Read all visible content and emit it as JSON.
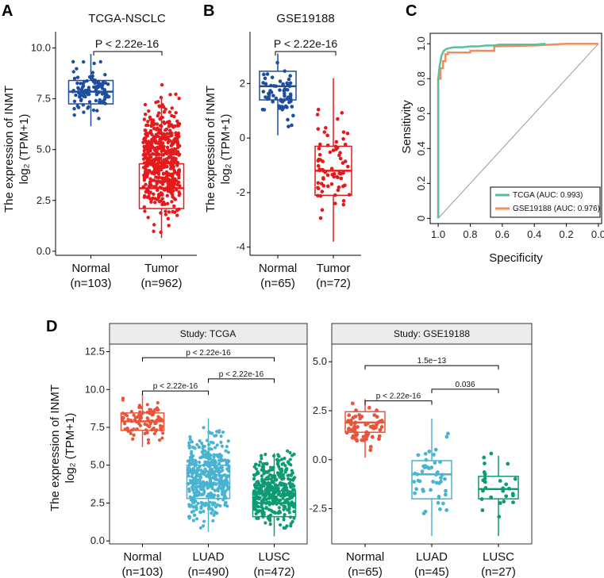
{
  "panel_labels": [
    "A",
    "B",
    "C",
    "D"
  ],
  "colors": {
    "normal_blue": "#1f4e9c",
    "tumor_red": "#e41a1c",
    "tcga_roc": "#5dbf9a",
    "gse_roc": "#f28c5a",
    "d_normal": "#e8553a",
    "d_luad": "#49b3d1",
    "d_lusc": "#0e9a73",
    "strip_bg": "#ececec"
  },
  "chart_data": [
    {
      "panel": "A",
      "type": "box",
      "title": "TCGA-NSCLC",
      "ylabel_line1": "The expression of INMT",
      "ylabel_line2": "log₂ (TPM+1)",
      "ylim": [
        -0.2,
        10.8
      ],
      "yticks": [
        "0.0",
        "2.5",
        "5.0",
        "7.5",
        "10.0"
      ],
      "pvalue": "P < 2.22e-16",
      "groups": [
        {
          "name": "Normal",
          "n_label": "(n=103)",
          "q1": 7.25,
          "median": 7.85,
          "q3": 8.4,
          "whisker_low": 6.15,
          "whisker_high": 9.7,
          "range": [
            6.1,
            9.7
          ]
        },
        {
          "name": "Tumor",
          "n_label": "(n=962)",
          "q1": 2.1,
          "median": 3.1,
          "q3": 4.3,
          "whisker_low": 0.65,
          "whisker_high": 7.6,
          "range": [
            0.6,
            8.4
          ]
        }
      ]
    },
    {
      "panel": "B",
      "type": "box",
      "title": "GSE19188",
      "ylabel_line1": "The expression of INMT",
      "ylabel_line2": "log₂ (TPM+1)",
      "ylim": [
        -4.3,
        3.9
      ],
      "yticks": [
        "-4",
        "-2",
        "0",
        "2"
      ],
      "pvalue": "P < 2.22e-16",
      "groups": [
        {
          "name": "Normal",
          "n_label": "(n=65)",
          "q1": 1.4,
          "median": 1.9,
          "q3": 2.45,
          "whisker_low": 0.1,
          "whisker_high": 3.1,
          "range": [
            0.1,
            3.1
          ]
        },
        {
          "name": "Tumor",
          "n_label": "(n=72)",
          "q1": -2.1,
          "median": -1.2,
          "q3": -0.3,
          "whisker_low": -3.8,
          "whisker_high": 2.2,
          "range": [
            -3.9,
            2.2
          ]
        }
      ]
    },
    {
      "panel": "C",
      "type": "line",
      "xlabel": "Specificity",
      "ylabel": "Sensitivity",
      "xlim": [
        1.05,
        -0.02
      ],
      "ylim": [
        -0.03,
        1.06
      ],
      "xticks": [
        "1.0",
        "0.8",
        "0.6",
        "0.4",
        "0.2",
        "0.0"
      ],
      "yticks": [
        "0",
        "0.2",
        "0.4",
        "0.6",
        "0.8",
        "1.0"
      ],
      "series": [
        {
          "name": "TCGA (AUC: 0.993)",
          "x": [
            1.0,
            1.0,
            0.99,
            0.985,
            0.98,
            0.97,
            0.965,
            0.95,
            0.93,
            0.9,
            0.85,
            0.8,
            0.75,
            0.7,
            0.65,
            0.62,
            0.55,
            0.4,
            0.33
          ],
          "y": [
            0.0,
            0.8,
            0.88,
            0.9,
            0.93,
            0.95,
            0.96,
            0.97,
            0.975,
            0.98,
            0.98,
            0.985,
            0.985,
            0.99,
            0.99,
            0.995,
            0.995,
            0.995,
            1.0
          ]
        },
        {
          "name": "GSE19188 (AUC: 0.976)",
          "x": [
            1.0,
            1.0,
            0.985,
            0.985,
            0.97,
            0.97,
            0.955,
            0.955,
            0.94,
            0.94,
            0.8,
            0.8,
            0.65,
            0.65,
            0.4,
            0.2,
            0.0
          ],
          "y": [
            0.0,
            0.8,
            0.8,
            0.86,
            0.86,
            0.9,
            0.9,
            0.94,
            0.94,
            0.95,
            0.95,
            0.96,
            0.96,
            0.985,
            0.99,
            1.0,
            1.0
          ]
        }
      ]
    },
    {
      "panel": "D-left",
      "type": "box",
      "strip_title": "Study: TCGA",
      "ylabel_line1": "The expression of INMT",
      "ylabel_line2": "log₂ (TPM+1)",
      "ylim": [
        -0.2,
        13.0
      ],
      "yticks": [
        "0.0",
        "2.5",
        "5.0",
        "7.5",
        "10.0",
        "12.5"
      ],
      "comparisons": [
        {
          "label": "p < 2.22e-16",
          "from": 0,
          "to": 2,
          "y": 12.1
        },
        {
          "label": "p < 2.22e-16",
          "from": 1,
          "to": 2,
          "y": 10.7
        },
        {
          "label": "p < 2.22e-16",
          "from": 0,
          "to": 1,
          "y": 9.9
        }
      ],
      "groups": [
        {
          "name": "Normal",
          "n_label": "(n=103)",
          "q1": 7.3,
          "median": 7.9,
          "q3": 8.45,
          "whisker_low": 6.2,
          "whisker_high": 9.7,
          "range": [
            6.1,
            9.7
          ]
        },
        {
          "name": "LUAD",
          "n_label": "(n=490)",
          "q1": 2.8,
          "median": 3.8,
          "q3": 5.0,
          "whisker_low": 0.6,
          "whisker_high": 8.1,
          "range": [
            0.3,
            8.1
          ]
        },
        {
          "name": "LUSC",
          "n_label": "(n=472)",
          "q1": 1.6,
          "median": 2.5,
          "q3": 3.3,
          "whisker_low": 0.3,
          "whisker_high": 5.8,
          "range": [
            0.2,
            6.6
          ]
        }
      ]
    },
    {
      "panel": "D-right",
      "type": "box",
      "strip_title": "Study: GSE19188",
      "ylim": [
        -4.3,
        5.9
      ],
      "yticks": [
        "-2.5",
        "0.0",
        "2.5",
        "5.0"
      ],
      "comparisons": [
        {
          "label": "1.5e−13",
          "from": 0,
          "to": 2,
          "y": 4.8
        },
        {
          "label": "0.036",
          "from": 1,
          "to": 2,
          "y": 3.6
        },
        {
          "label": "p < 2.22e-16",
          "from": 0,
          "to": 1,
          "y": 3.0
        }
      ],
      "groups": [
        {
          "name": "Normal",
          "n_label": "(n=65)",
          "q1": 1.4,
          "median": 1.9,
          "q3": 2.45,
          "whisker_low": 0.1,
          "whisker_high": 3.1,
          "range": [
            0.1,
            3.1
          ]
        },
        {
          "name": "LUAD",
          "n_label": "(n=45)",
          "q1": -2.0,
          "median": -0.75,
          "q3": -0.05,
          "whisker_low": -3.9,
          "whisker_high": 2.1,
          "range": [
            -3.9,
            2.1
          ]
        },
        {
          "name": "LUSC",
          "n_label": "(n=27)",
          "q1": -2.0,
          "median": -1.5,
          "q3": -0.85,
          "whisker_low": -3.9,
          "whisker_high": 0.2,
          "range": [
            -3.9,
            1.2
          ]
        }
      ]
    }
  ]
}
